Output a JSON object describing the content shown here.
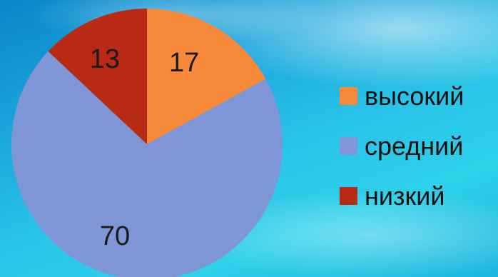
{
  "chart_data": {
    "type": "pie",
    "title": "",
    "categories": [
      "высокий",
      "средний",
      "низкий"
    ],
    "values": [
      17,
      70,
      13
    ],
    "colors": [
      "#f78a3a",
      "#7f96d6",
      "#b82a14"
    ],
    "start_angle_deg": 0,
    "direction": "clockwise",
    "data_labels": [
      "17",
      "70",
      "13"
    ],
    "legend_position": "right"
  }
}
